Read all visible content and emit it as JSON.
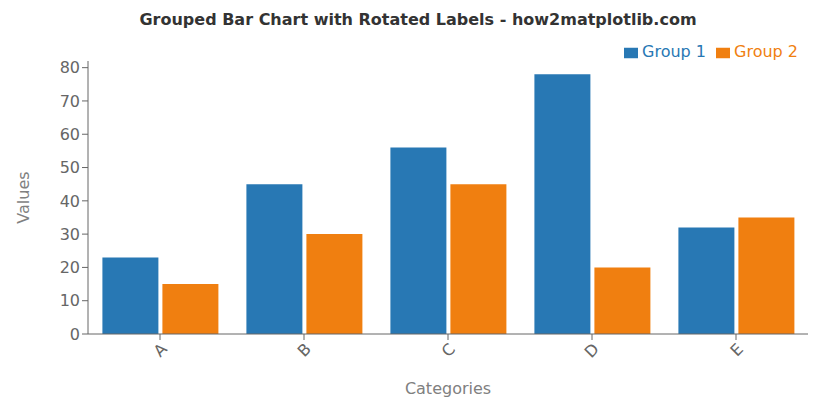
{
  "chart_data": {
    "type": "bar",
    "title": "Grouped Bar Chart with Rotated Labels - how2matplotlib.com",
    "xlabel": "Categories",
    "ylabel": "Values",
    "categories": [
      "A",
      "B",
      "C",
      "D",
      "E"
    ],
    "series": [
      {
        "name": "Group 1",
        "color": "#2878b4",
        "values": [
          23,
          45,
          56,
          78,
          32
        ]
      },
      {
        "name": "Group 2",
        "color": "#f07f10",
        "values": [
          15,
          30,
          45,
          20,
          35
        ]
      }
    ],
    "ylim": [
      0,
      82
    ],
    "yticks": [
      0,
      10,
      20,
      30,
      40,
      50,
      60,
      70,
      80
    ],
    "legend": "upper right"
  }
}
